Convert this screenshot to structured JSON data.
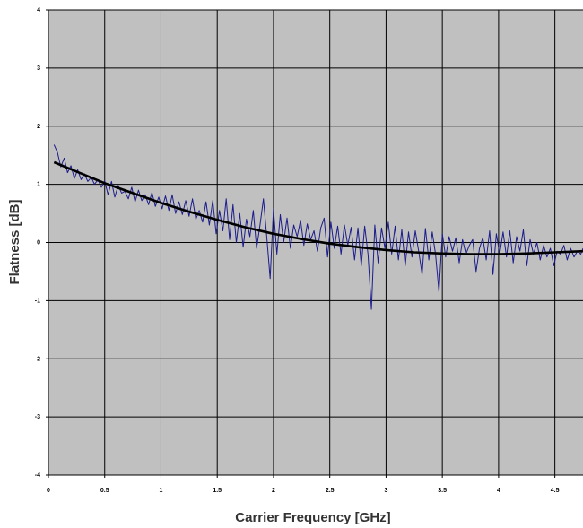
{
  "chart_data": {
    "type": "line",
    "title": "",
    "xlabel": "Carrier Frequency [GHz]",
    "ylabel": "Flatness [dB]",
    "xlim": [
      0,
      4.75
    ],
    "ylim": [
      -4,
      4
    ],
    "x_ticks": [
      0,
      0.5,
      1,
      1.5,
      2,
      2.5,
      3,
      3.5,
      4,
      4.5
    ],
    "x_tick_labels": [
      "0",
      "0.5",
      "1",
      "1.5",
      "2",
      "2.5",
      "3",
      "3.5",
      "4",
      "4.5"
    ],
    "y_ticks": [
      -4,
      -3,
      -2,
      -1,
      0,
      1,
      2,
      3,
      4
    ],
    "y_tick_labels": [
      "-4",
      "-3",
      "-2",
      "-1",
      "0",
      "1",
      "2",
      "3",
      "4"
    ],
    "grid": true,
    "legend": "none",
    "colors": {
      "plot_background": "#c0c0c0",
      "grid": "#000000",
      "measured": "#1c1c8c",
      "fit": "#000000"
    },
    "series": [
      {
        "style": "thin-blue",
        "x": [
          0.05,
          0.08,
          0.11,
          0.14,
          0.17,
          0.2,
          0.23,
          0.26,
          0.29,
          0.32,
          0.35,
          0.38,
          0.41,
          0.44,
          0.47,
          0.5,
          0.53,
          0.56,
          0.59,
          0.62,
          0.65,
          0.68,
          0.71,
          0.74,
          0.77,
          0.8,
          0.83,
          0.86,
          0.89,
          0.92,
          0.95,
          0.98,
          1.01,
          1.04,
          1.07,
          1.1,
          1.13,
          1.16,
          1.19,
          1.22,
          1.25,
          1.28,
          1.31,
          1.34,
          1.37,
          1.4,
          1.43,
          1.46,
          1.49,
          1.52,
          1.55,
          1.58,
          1.61,
          1.64,
          1.67,
          1.7,
          1.73,
          1.76,
          1.79,
          1.82,
          1.85,
          1.88,
          1.91,
          1.94,
          1.97,
          2.0,
          2.03,
          2.06,
          2.09,
          2.12,
          2.15,
          2.18,
          2.21,
          2.24,
          2.27,
          2.3,
          2.33,
          2.36,
          2.39,
          2.42,
          2.45,
          2.48,
          2.51,
          2.54,
          2.57,
          2.6,
          2.63,
          2.66,
          2.69,
          2.72,
          2.75,
          2.78,
          2.81,
          2.84,
          2.87,
          2.9,
          2.93,
          2.96,
          2.99,
          3.02,
          3.05,
          3.08,
          3.11,
          3.14,
          3.17,
          3.2,
          3.23,
          3.26,
          3.29,
          3.32,
          3.35,
          3.38,
          3.41,
          3.44,
          3.47,
          3.5,
          3.53,
          3.56,
          3.59,
          3.62,
          3.65,
          3.68,
          3.71,
          3.74,
          3.77,
          3.8,
          3.83,
          3.86,
          3.89,
          3.92,
          3.95,
          3.98,
          4.01,
          4.04,
          4.07,
          4.1,
          4.13,
          4.16,
          4.19,
          4.22,
          4.25,
          4.28,
          4.31,
          4.34,
          4.37,
          4.4,
          4.43,
          4.46,
          4.49,
          4.52,
          4.55,
          4.58,
          4.61,
          4.64,
          4.67,
          4.7,
          4.73,
          4.75
        ],
        "y": [
          1.68,
          1.55,
          1.3,
          1.45,
          1.2,
          1.32,
          1.1,
          1.25,
          1.08,
          1.18,
          1.05,
          1.12,
          1.0,
          1.08,
          0.95,
          1.06,
          0.82,
          1.05,
          0.78,
          0.98,
          0.85,
          0.88,
          0.75,
          0.95,
          0.7,
          0.9,
          0.72,
          0.82,
          0.65,
          0.86,
          0.62,
          0.78,
          0.58,
          0.8,
          0.55,
          0.82,
          0.5,
          0.7,
          0.48,
          0.72,
          0.45,
          0.75,
          0.4,
          0.55,
          0.35,
          0.7,
          0.3,
          0.72,
          0.15,
          0.55,
          0.2,
          0.75,
          0.05,
          0.65,
          0.0,
          0.5,
          -0.08,
          0.4,
          0.1,
          0.55,
          -0.1,
          0.3,
          0.75,
          0.1,
          -0.62,
          0.58,
          -0.2,
          0.48,
          0.0,
          0.42,
          -0.1,
          0.3,
          0.1,
          0.38,
          -0.05,
          0.32,
          0.05,
          0.2,
          -0.15,
          0.25,
          0.42,
          -0.25,
          0.35,
          -0.1,
          0.28,
          -0.2,
          0.3,
          -0.05,
          0.26,
          -0.3,
          0.25,
          -0.4,
          0.28,
          -0.2,
          -1.15,
          0.3,
          -0.35,
          0.25,
          -0.1,
          0.35,
          -0.2,
          0.28,
          -0.3,
          0.22,
          -0.4,
          0.18,
          -0.25,
          0.2,
          -0.15,
          -0.55,
          0.24,
          -0.3,
          0.18,
          -0.2,
          -0.85,
          0.15,
          -0.25,
          0.1,
          -0.15,
          0.08,
          -0.35,
          0.05,
          -0.2,
          -0.05,
          0.05,
          -0.5,
          -0.1,
          0.08,
          -0.3,
          0.2,
          -0.55,
          0.15,
          -0.2,
          0.18,
          -0.25,
          0.2,
          -0.35,
          0.1,
          -0.15,
          0.22,
          -0.4,
          0.05,
          -0.2,
          0.0,
          -0.3,
          -0.05,
          -0.25,
          -0.1,
          -0.4,
          -0.15,
          -0.2,
          -0.05,
          -0.3,
          -0.1,
          -0.25,
          -0.15,
          -0.2,
          -0.1
        ]
      },
      {
        "style": "thick-black",
        "x": [
          0.05,
          0.25,
          0.5,
          0.75,
          1.0,
          1.25,
          1.5,
          1.75,
          2.0,
          2.25,
          2.5,
          2.75,
          3.0,
          3.25,
          3.5,
          3.75,
          4.0,
          4.25,
          4.5,
          4.75
        ],
        "y": [
          1.38,
          1.22,
          1.02,
          0.85,
          0.68,
          0.53,
          0.39,
          0.26,
          0.15,
          0.06,
          -0.02,
          -0.08,
          -0.13,
          -0.17,
          -0.19,
          -0.2,
          -0.2,
          -0.19,
          -0.17,
          -0.15
        ]
      }
    ]
  }
}
